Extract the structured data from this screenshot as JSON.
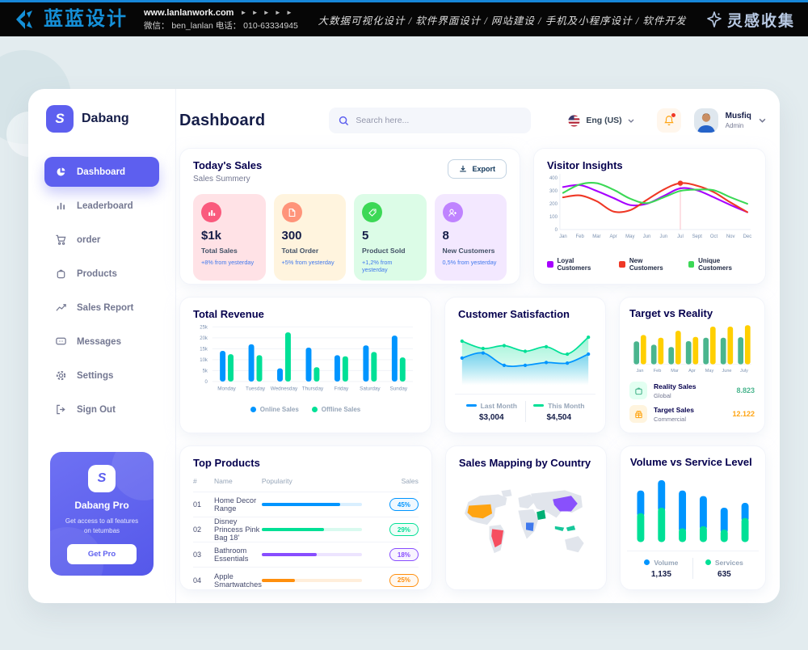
{
  "topbar": {
    "logo_text": "蓝蓝设计",
    "site": "www.lanlanwork.com",
    "site_arrows": "► ► ► ► ►",
    "contact": "微信： ben_lanlan    电话： 010-63334945",
    "services": "大数据可视化设计  /  软件界面设计  /  网站建设  /  手机及小程序设计  /  软件开发",
    "collect": "灵感收集"
  },
  "sidebar": {
    "brand": "Dabang",
    "items": [
      {
        "label": "Dashboard"
      },
      {
        "label": "Leaderboard"
      },
      {
        "label": "order"
      },
      {
        "label": "Products"
      },
      {
        "label": "Sales Report"
      },
      {
        "label": "Messages"
      },
      {
        "label": "Settings"
      },
      {
        "label": "Sign Out"
      }
    ],
    "pro": {
      "title": "Dabang Pro",
      "desc": "Get access to all features on tetumbas",
      "button": "Get Pro"
    }
  },
  "header": {
    "title": "Dashboard",
    "search_placeholder": "Search here...",
    "language": "Eng (US)",
    "user": {
      "name": "Musfiq",
      "role": "Admin"
    }
  },
  "today_sales": {
    "title": "Today's Sales",
    "subtitle": "Sales Summery",
    "export_label": "Export",
    "stats": [
      {
        "value": "$1k",
        "label": "Total Sales",
        "delta": "+8% from yesterday",
        "bg": "#ffe2e6",
        "icon_bg": "#fa5a7d",
        "icon": "bar-chart"
      },
      {
        "value": "300",
        "label": "Total Order",
        "delta": "+5% from yesterday",
        "bg": "#fff4de",
        "icon_bg": "#ff947a",
        "icon": "file"
      },
      {
        "value": "5",
        "label": "Product Sold",
        "delta": "+1,2% from yesterday",
        "bg": "#dcfce7",
        "icon_bg": "#3cd856",
        "icon": "tag"
      },
      {
        "value": "8",
        "label": "New Customers",
        "delta": "0,5% from yesterday",
        "bg": "#f3e8ff",
        "icon_bg": "#bf83ff",
        "icon": "user-plus"
      }
    ]
  },
  "charts": {
    "visitor_insights": {
      "type": "line",
      "title": "Visitor Insights",
      "x": [
        "Jan",
        "Feb",
        "Mar",
        "Apr",
        "May",
        "Jun",
        "Jun",
        "Jul",
        "Sept",
        "Oct",
        "Nov",
        "Dec"
      ],
      "ylim": [
        0,
        400
      ],
      "yticks": [
        0,
        100,
        200,
        300,
        400
      ],
      "series": [
        {
          "name": "Loyal Customers",
          "color": "#a700ff",
          "values": [
            330,
            345,
            300,
            245,
            190,
            200,
            260,
            320,
            305,
            250,
            190,
            135
          ]
        },
        {
          "name": "New Customers",
          "color": "#ef3826",
          "values": [
            250,
            265,
            220,
            140,
            150,
            230,
            310,
            360,
            340,
            290,
            210,
            135
          ]
        },
        {
          "name": "Unique Customers",
          "color": "#3cd856",
          "values": [
            285,
            350,
            360,
            310,
            240,
            205,
            250,
            300,
            310,
            305,
            250,
            200
          ]
        }
      ],
      "marker": {
        "series": 1,
        "index": 7
      }
    },
    "total_revenue": {
      "type": "bar",
      "title": "Total Revenue",
      "categories": [
        "Monday",
        "Tuesday",
        "Wednesday",
        "Thursday",
        "Friday",
        "Saturday",
        "Sunday"
      ],
      "ylim": [
        0,
        25
      ],
      "ytick_labels": [
        "0",
        "5k",
        "10k",
        "15k",
        "20k",
        "25k"
      ],
      "series": [
        {
          "name": "Online Sales",
          "color": "#0095ff",
          "values": [
            14,
            17,
            6,
            15.5,
            12,
            16.5,
            21
          ]
        },
        {
          "name": "Offline Sales",
          "color": "#00e096",
          "values": [
            12.5,
            12,
            22.5,
            6.5,
            11.5,
            13.5,
            11
          ]
        }
      ]
    },
    "customer_satisfaction": {
      "type": "area",
      "title": "Customer Satisfaction",
      "ylim": [
        0,
        100
      ],
      "series": [
        {
          "name": "Last Month",
          "color": "#0095ff",
          "total": "$3,004",
          "values": [
            48,
            57,
            35,
            35,
            40,
            39,
            55
          ]
        },
        {
          "name": "This Month",
          "color": "#00e096",
          "total": "$4,504",
          "values": [
            78,
            65,
            70,
            60,
            68,
            55,
            85
          ]
        }
      ]
    },
    "target_vs_reality": {
      "type": "bar",
      "title": "Target vs Reality",
      "categories": [
        "Jan",
        "Feb",
        "Mar",
        "Apr",
        "May",
        "June",
        "July"
      ],
      "ylim": [
        0,
        15
      ],
      "series": [
        {
          "name": "Reality Sales",
          "sub": "Global",
          "color": "#4ab58e",
          "icon_bg": "#e2fff1",
          "value_label": "8.823",
          "value_color": "#4ab58e",
          "values": [
            8.2,
            7,
            6.2,
            8.3,
            9.5,
            9.5,
            9.7
          ]
        },
        {
          "name": "Target Sales",
          "sub": "Commercial",
          "color": "#ffcf00",
          "icon_bg": "#fff4de",
          "value_label": "12.122",
          "value_color": "#ffa412",
          "values": [
            10.5,
            9.5,
            12,
            9.8,
            13.5,
            13.5,
            14
          ]
        }
      ]
    },
    "volume_service": {
      "type": "stacked-bar",
      "title": "Volume vs Service Level",
      "ylim": [
        0,
        100
      ],
      "series": [
        {
          "name": "Volume",
          "color": "#0095ff",
          "total": "1,135",
          "values": [
            33,
            40,
            55,
            44,
            32,
            22
          ]
        },
        {
          "name": "Services",
          "color": "#00e096",
          "total": "635",
          "values": [
            42,
            50,
            20,
            23,
            18,
            35
          ]
        }
      ]
    }
  },
  "top_products": {
    "title": "Top Products",
    "headers": [
      "#",
      "Name",
      "Popularity",
      "Sales"
    ],
    "rows": [
      {
        "id": "01",
        "name": "Home Decor Range",
        "popularity": 78,
        "sales": "45%",
        "color": "#0095ff"
      },
      {
        "id": "02",
        "name": "Disney Princess Pink Bag 18'",
        "popularity": 62,
        "sales": "29%",
        "color": "#00e096"
      },
      {
        "id": "03",
        "name": "Bathroom Essentials",
        "popularity": 55,
        "sales": "18%",
        "color": "#884dff"
      },
      {
        "id": "04",
        "name": "Apple Smartwatches",
        "popularity": 33,
        "sales": "25%",
        "color": "#ff8f0d"
      }
    ]
  },
  "sales_map": {
    "title": "Sales Mapping by Country",
    "countries": [
      {
        "name": "United States",
        "color": "#ffa412"
      },
      {
        "name": "Brazil",
        "color": "#f64e60"
      },
      {
        "name": "Saudi Arabia",
        "color": "#00b074"
      },
      {
        "name": "DR Congo",
        "color": "#4079ed"
      },
      {
        "name": "China",
        "color": "#8950fc"
      },
      {
        "name": "Indonesia",
        "color": "#16c79a"
      }
    ]
  }
}
